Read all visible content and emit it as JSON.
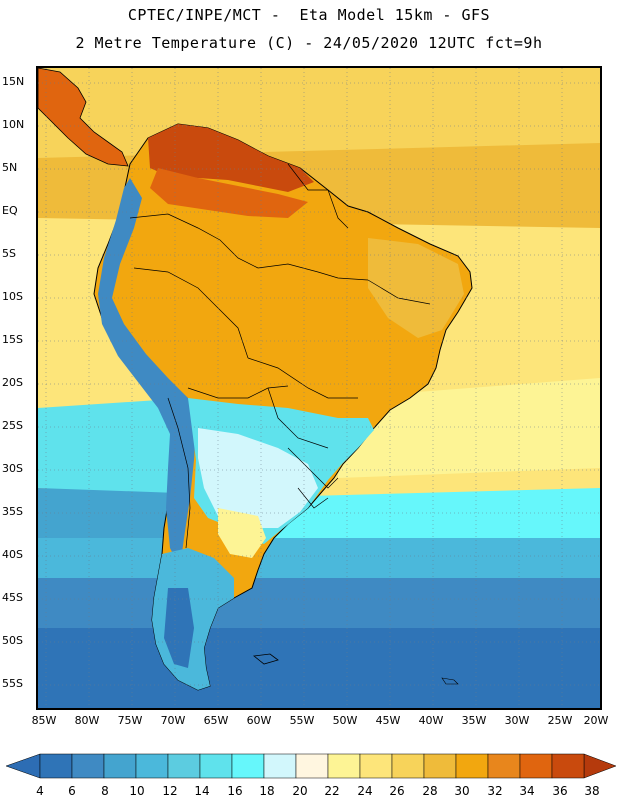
{
  "header": {
    "line1": "CPTEC/INPE/MCT -  Eta Model 15km - GFS",
    "line2": "2 Metre Temperature (C) - 24/05/2020 12UTC fct=9h"
  },
  "axes": {
    "lat_labels": [
      "15N",
      "10N",
      "5N",
      "EQ",
      "5S",
      "10S",
      "15S",
      "20S",
      "25S",
      "30S",
      "35S",
      "40S",
      "45S",
      "50S",
      "55S"
    ],
    "lon_labels": [
      "85W",
      "80W",
      "75W",
      "70W",
      "65W",
      "60W",
      "55W",
      "50W",
      "45W",
      "40W",
      "35W",
      "30W",
      "25W",
      "20W"
    ]
  },
  "colorbar": {
    "ticks": [
      "4",
      "6",
      "8",
      "10",
      "12",
      "14",
      "16",
      "18",
      "20",
      "22",
      "24",
      "26",
      "28",
      "30",
      "32",
      "34",
      "36",
      "38"
    ],
    "below_color": "#2d6db4",
    "above_color": "#b53a0c",
    "colors": [
      "#2f74b7",
      "#3f8ac3",
      "#44a4cf",
      "#4bb8db",
      "#5ccce0",
      "#5fe2ec",
      "#66f7fb",
      "#d2f7fc",
      "#fff6e0",
      "#fdf495",
      "#fde57a",
      "#f7d35a",
      "#efbb3a",
      "#f2a70f",
      "#e8861c",
      "#e0650f",
      "#c94a0d"
    ]
  },
  "map": {
    "region": "South America",
    "ocean_colors": {
      "north_warm": "#f7d35a",
      "tropical": "#fde57a",
      "subtropical": "#fdf495",
      "cool": "#66f7fb",
      "cold": "#4bb8db",
      "colder": "#3f8ac3",
      "coldest": "#2f74b7"
    },
    "land_colors": {
      "hot": "#c94a0d",
      "warm": "#e0650f",
      "amazon": "#f2a70f",
      "mild": "#efbb3a",
      "andes_cold": "#3f8ac3",
      "patagonia": "#4bb8db",
      "south_cool": "#5fe2ec",
      "pampas": "#d2f7fc"
    }
  }
}
